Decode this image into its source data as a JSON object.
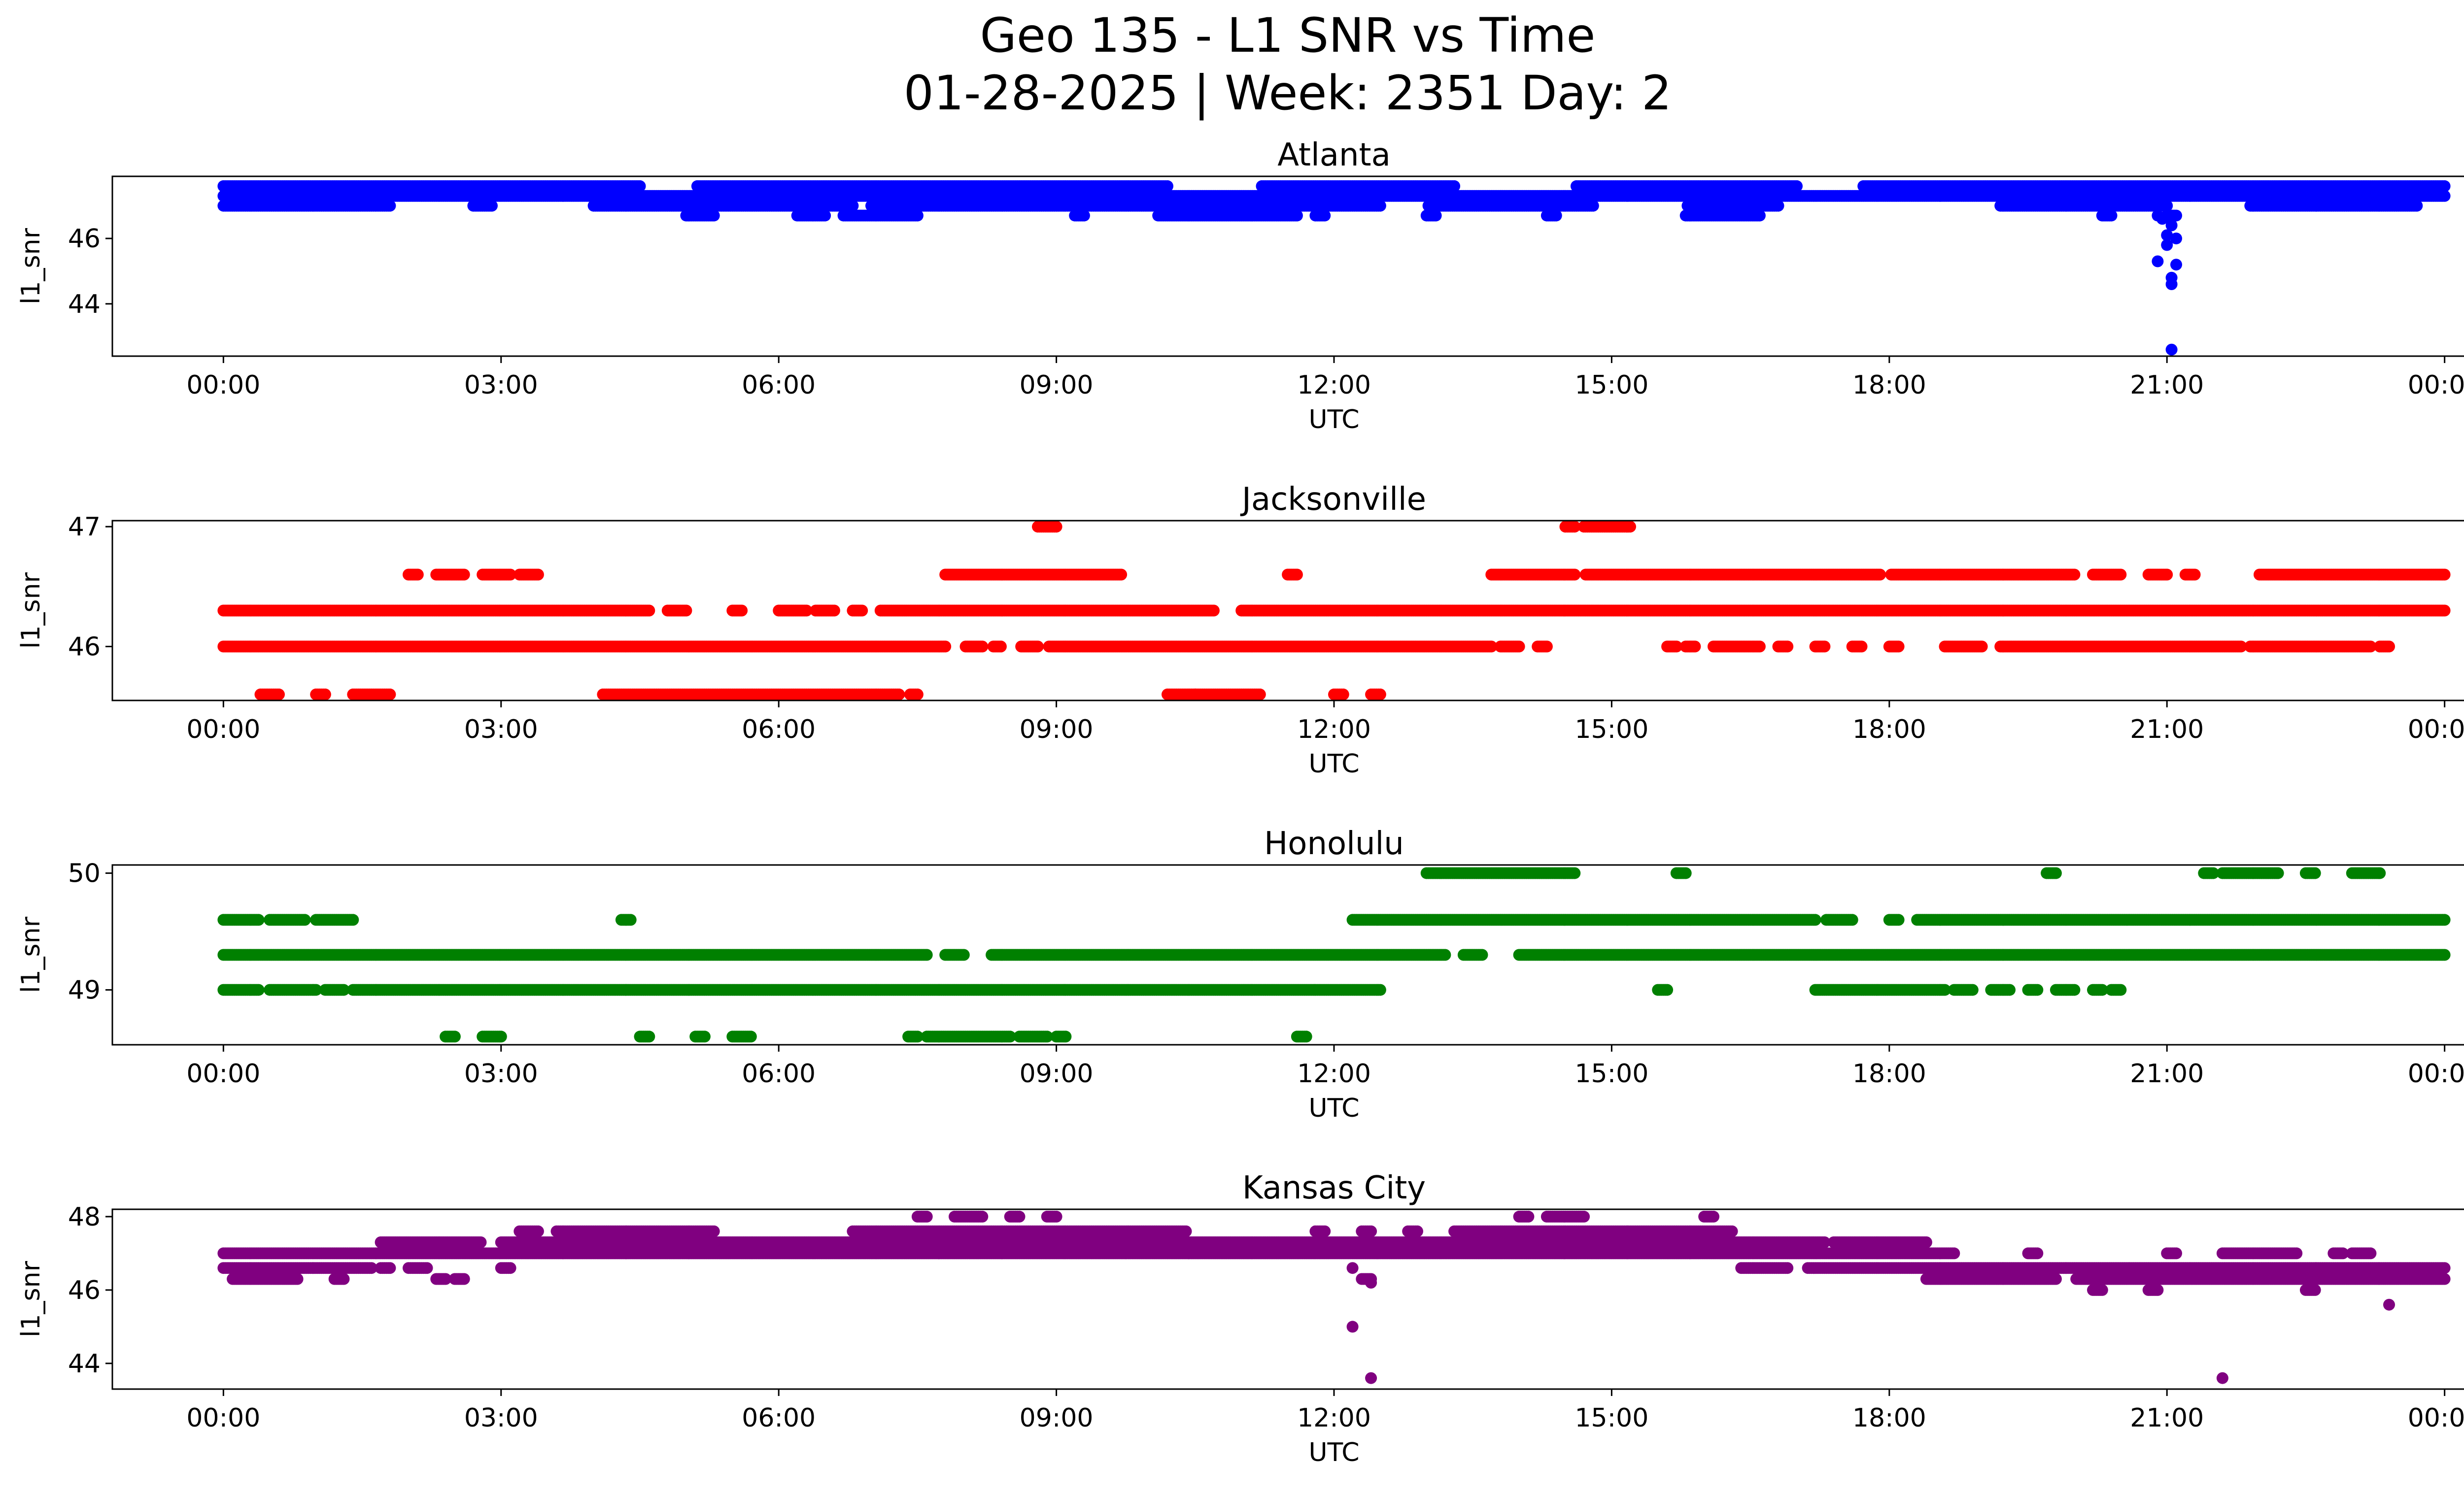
{
  "figure": {
    "title_line1": "Geo 135 - L1 SNR vs Time",
    "title_line2": "01-28-2025 | Week: 2351 Day: 2"
  },
  "chart_data": [
    {
      "type": "scatter",
      "title": "Atlanta",
      "color": "#0000ff",
      "xlabel": "UTC",
      "ylabel": "l1_snr",
      "xlim_hours": [
        -1.2,
        25.2
      ],
      "ylim": [
        42.4,
        47.9
      ],
      "x_ticks": [
        0,
        3,
        6,
        9,
        12,
        15,
        18,
        21,
        24
      ],
      "x_tick_labels": [
        "00:00",
        "03:00",
        "06:00",
        "09:00",
        "12:00",
        "15:00",
        "18:00",
        "21:00",
        "00:00"
      ],
      "y_ticks": [
        44,
        46
      ],
      "y_tick_labels": [
        "44",
        "46"
      ],
      "bands": [
        {
          "value": 47.6,
          "segments": [
            [
              0.0,
              24.0
            ]
          ],
          "gaps": [
            [
              4.5,
              5.1
            ],
            [
              10.2,
              11.2
            ],
            [
              13.3,
              14.6
            ],
            [
              17.0,
              17.7
            ]
          ]
        },
        {
          "value": 47.3,
          "segments": [
            [
              0.0,
              24.0
            ]
          ],
          "gaps": []
        },
        {
          "value": 47.0,
          "segments": [
            [
              0.0,
              1.8
            ],
            [
              2.7,
              2.9
            ],
            [
              4.0,
              6.8
            ],
            [
              7.0,
              16.8
            ],
            [
              19.2,
              21.0
            ],
            [
              21.9,
              23.7
            ]
          ],
          "gaps": [
            [
              1.9,
              2.6
            ],
            [
              12.5,
              13.0
            ],
            [
              14.8,
              15.8
            ]
          ]
        },
        {
          "value": 46.7,
          "segments": [
            [
              5.0,
              5.3
            ],
            [
              6.2,
              6.5
            ],
            [
              6.7,
              7.5
            ],
            [
              9.2,
              9.3
            ],
            [
              10.1,
              11.6
            ],
            [
              11.8,
              11.9
            ],
            [
              13.0,
              13.1
            ],
            [
              14.3,
              14.4
            ],
            [
              15.8,
              16.6
            ],
            [
              20.3,
              20.4
            ],
            [
              21.0,
              21.1
            ]
          ],
          "gaps": []
        }
      ],
      "points": [
        [
          20.9,
          46.7
        ],
        [
          20.95,
          46.6
        ],
        [
          21.05,
          46.4
        ],
        [
          21.0,
          46.1
        ],
        [
          21.1,
          46.0
        ],
        [
          21.0,
          45.8
        ],
        [
          20.9,
          45.3
        ],
        [
          21.1,
          45.2
        ],
        [
          21.05,
          44.8
        ],
        [
          21.05,
          44.6
        ],
        [
          21.05,
          42.6
        ]
      ]
    },
    {
      "type": "scatter",
      "title": "Jacksonville",
      "color": "#ff0000",
      "xlabel": "UTC",
      "ylabel": "l1_snr",
      "xlim_hours": [
        -1.2,
        25.2
      ],
      "ylim": [
        45.55,
        47.05
      ],
      "x_ticks": [
        0,
        3,
        6,
        9,
        12,
        15,
        18,
        21,
        24
      ],
      "x_tick_labels": [
        "00:00",
        "03:00",
        "06:00",
        "09:00",
        "12:00",
        "15:00",
        "18:00",
        "21:00",
        "00:00"
      ],
      "y_ticks": [
        46,
        47
      ],
      "y_tick_labels": [
        "46",
        "47"
      ],
      "bands": [
        {
          "value": 46.6,
          "segments": [
            [
              2.0,
              2.1
            ],
            [
              2.3,
              2.6
            ],
            [
              2.8,
              3.1
            ],
            [
              3.2,
              3.4
            ],
            [
              7.8,
              9.7
            ],
            [
              11.5,
              11.6
            ],
            [
              13.7,
              20.0
            ],
            [
              20.2,
              20.5
            ],
            [
              20.8,
              21.0
            ],
            [
              21.2,
              21.3
            ],
            [
              22.0,
              24.0
            ]
          ],
          "gaps": [
            [
              14.6,
              14.7
            ],
            [
              17.9,
              18.0
            ],
            [
              21.6,
              22.0
            ]
          ]
        },
        {
          "value": 46.3,
          "segments": [
            [
              0.0,
              4.6
            ],
            [
              4.8,
              5.0
            ],
            [
              5.5,
              5.6
            ],
            [
              6.0,
              6.3
            ],
            [
              6.4,
              6.6
            ],
            [
              6.8,
              6.9
            ],
            [
              7.1,
              10.7
            ],
            [
              11.0,
              24.0
            ]
          ],
          "gaps": [
            [
              10.7,
              11.0
            ]
          ]
        },
        {
          "value": 46.0,
          "segments": [
            [
              0.0,
              13.7
            ],
            [
              13.8,
              14.0
            ],
            [
              14.2,
              14.3
            ],
            [
              15.6,
              15.7
            ],
            [
              15.8,
              15.9
            ],
            [
              16.1,
              16.6
            ],
            [
              16.8,
              16.9
            ],
            [
              17.2,
              17.3
            ],
            [
              17.6,
              17.7
            ],
            [
              18.0,
              18.1
            ],
            [
              18.6,
              19.0
            ],
            [
              19.2,
              21.8
            ],
            [
              21.9,
              23.2
            ],
            [
              23.3,
              23.4
            ]
          ],
          "gaps": [
            [
              7.8,
              8.0
            ],
            [
              8.2,
              8.3
            ],
            [
              8.4,
              8.6
            ],
            [
              8.8,
              8.9
            ]
          ]
        },
        {
          "value": 45.6,
          "segments": [
            [
              0.4,
              0.6
            ],
            [
              1.0,
              1.1
            ],
            [
              1.4,
              1.8
            ],
            [
              4.1,
              7.5
            ],
            [
              10.2,
              10.5
            ],
            [
              10.5,
              11.2
            ],
            [
              12.0,
              12.1
            ],
            [
              12.4,
              12.5
            ]
          ],
          "gaps": [
            [
              7.3,
              7.4
            ]
          ]
        },
        {
          "value": 47.0,
          "segments": [
            [
              8.8,
              9.0
            ],
            [
              14.5,
              14.6
            ],
            [
              14.7,
              15.2
            ]
          ],
          "gaps": []
        }
      ],
      "points": []
    },
    {
      "type": "scatter",
      "title": "Honolulu",
      "color": "#008000",
      "xlabel": "UTC",
      "ylabel": "l1_snr",
      "xlim_hours": [
        -1.2,
        25.2
      ],
      "ylim": [
        48.53,
        50.07
      ],
      "x_ticks": [
        0,
        3,
        6,
        9,
        12,
        15,
        18,
        21,
        24
      ],
      "x_tick_labels": [
        "00:00",
        "03:00",
        "06:00",
        "09:00",
        "12:00",
        "15:00",
        "18:00",
        "21:00",
        "00:00"
      ],
      "y_ticks": [
        49,
        50
      ],
      "y_tick_labels": [
        "49",
        "50"
      ],
      "bands": [
        {
          "value": 50.0,
          "segments": [
            [
              13.0,
              14.6
            ],
            [
              15.7,
              15.8
            ],
            [
              19.7,
              19.8
            ],
            [
              21.4,
              21.5
            ],
            [
              21.6,
              22.2
            ],
            [
              22.5,
              22.6
            ],
            [
              23.0,
              23.3
            ]
          ],
          "gaps": []
        },
        {
          "value": 49.6,
          "segments": [
            [
              0.0,
              1.4
            ],
            [
              4.3,
              4.4
            ],
            [
              12.2,
              17.6
            ],
            [
              18.0,
              18.1
            ],
            [
              18.3,
              24.0
            ]
          ],
          "gaps": [
            [
              0.4,
              0.5
            ],
            [
              0.9,
              1.0
            ],
            [
              17.2,
              17.3
            ]
          ]
        },
        {
          "value": 49.3,
          "segments": [
            [
              0.0,
              7.6
            ],
            [
              7.8,
              8.0
            ],
            [
              8.3,
              13.2
            ],
            [
              13.4,
              13.6
            ],
            [
              14.0,
              24.0
            ]
          ],
          "gaps": [
            [
              7.6,
              7.8
            ]
          ]
        },
        {
          "value": 49.0,
          "segments": [
            [
              0.0,
              1.0
            ],
            [
              1.1,
              1.3
            ],
            [
              1.4,
              12.5
            ],
            [
              15.5,
              15.6
            ],
            [
              17.2,
              18.6
            ],
            [
              18.7,
              18.9
            ],
            [
              19.1,
              19.3
            ],
            [
              19.5,
              19.6
            ],
            [
              19.8,
              20.0
            ],
            [
              20.2,
              20.3
            ],
            [
              20.4,
              20.5
            ]
          ],
          "gaps": [
            [
              0.4,
              0.5
            ]
          ]
        },
        {
          "value": 48.6,
          "segments": [
            [
              2.4,
              2.5
            ],
            [
              2.8,
              3.0
            ],
            [
              4.5,
              4.6
            ],
            [
              5.1,
              5.2
            ],
            [
              5.5,
              5.7
            ],
            [
              7.4,
              7.5
            ],
            [
              7.6,
              8.5
            ],
            [
              8.6,
              8.9
            ],
            [
              9.0,
              9.1
            ],
            [
              11.6,
              11.7
            ]
          ],
          "gaps": []
        }
      ],
      "points": []
    },
    {
      "type": "scatter",
      "title": "Kansas City",
      "color": "#800080",
      "xlabel": "UTC",
      "ylabel": "l1_snr",
      "xlim_hours": [
        -1.2,
        25.2
      ],
      "ylim": [
        43.3,
        48.2
      ],
      "x_ticks": [
        0,
        3,
        6,
        9,
        12,
        15,
        18,
        21,
        24
      ],
      "x_tick_labels": [
        "00:00",
        "03:00",
        "06:00",
        "09:00",
        "12:00",
        "15:00",
        "18:00",
        "21:00",
        "00:00"
      ],
      "y_ticks": [
        44,
        46,
        48
      ],
      "y_tick_labels": [
        "44",
        "46",
        "48"
      ],
      "bands": [
        {
          "value": 48.0,
          "segments": [
            [
              7.5,
              7.6
            ],
            [
              7.9,
              8.2
            ],
            [
              8.5,
              8.6
            ],
            [
              8.9,
              9.0
            ],
            [
              14.0,
              14.1
            ],
            [
              14.3,
              14.7
            ],
            [
              16.0,
              16.1
            ]
          ],
          "gaps": []
        },
        {
          "value": 47.6,
          "segments": [
            [
              3.2,
              3.4
            ],
            [
              3.6,
              5.3
            ],
            [
              6.8,
              10.4
            ],
            [
              11.8,
              11.9
            ],
            [
              12.3,
              12.4
            ],
            [
              12.8,
              12.9
            ],
            [
              13.3,
              16.3
            ]
          ],
          "gaps": []
        },
        {
          "value": 47.3,
          "segments": [
            [
              1.7,
              17.3
            ],
            [
              17.4,
              18.4
            ]
          ],
          "gaps": [
            [
              2.8,
              3.0
            ]
          ]
        },
        {
          "value": 47.0,
          "segments": [
            [
              0.0,
              18.7
            ],
            [
              19.5,
              19.6
            ],
            [
              21.0,
              21.1
            ],
            [
              21.6,
              22.4
            ],
            [
              22.8,
              22.9
            ],
            [
              23.0,
              23.2
            ]
          ],
          "gaps": [
            [
              18.8,
              19.4
            ]
          ]
        },
        {
          "value": 46.6,
          "segments": [
            [
              0.0,
              1.6
            ],
            [
              1.7,
              1.8
            ],
            [
              2.0,
              2.2
            ],
            [
              3.0,
              3.1
            ],
            [
              16.4,
              24.0
            ]
          ],
          "gaps": [
            [
              16.9,
              17.1
            ]
          ]
        },
        {
          "value": 46.3,
          "segments": [
            [
              0.1,
              0.8
            ],
            [
              1.2,
              1.3
            ],
            [
              2.3,
              2.4
            ],
            [
              2.5,
              2.6
            ],
            [
              12.3,
              12.4
            ],
            [
              18.4,
              24.0
            ]
          ],
          "gaps": [
            [
              19.8,
              20.0
            ]
          ]
        },
        {
          "value": 46.0,
          "segments": [
            [
              20.2,
              20.3
            ],
            [
              20.8,
              20.9
            ],
            [
              22.5,
              22.6
            ]
          ],
          "gaps": []
        }
      ],
      "points": [
        [
          12.2,
          46.6
        ],
        [
          12.4,
          46.2
        ],
        [
          12.2,
          45.0
        ],
        [
          12.4,
          43.6
        ],
        [
          21.6,
          43.6
        ],
        [
          23.4,
          45.6
        ]
      ]
    }
  ]
}
